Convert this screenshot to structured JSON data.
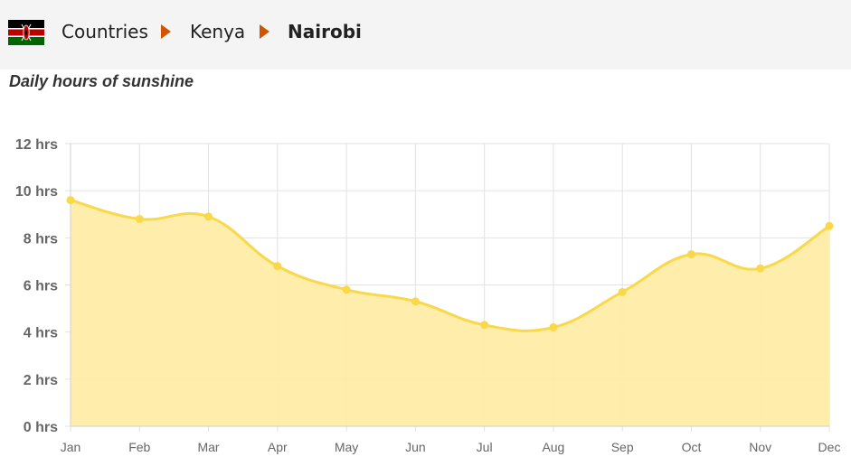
{
  "breadcrumb": {
    "items": [
      "Countries",
      "Kenya",
      "Nairobi"
    ]
  },
  "flag_icon": "kenya-flag-icon",
  "colors": {
    "accent": "#d35400",
    "line": "#f9d849",
    "fill": "#feeca6",
    "grid": "#e2e2e2",
    "header_bg": "#f4f4f4"
  },
  "chart_data": {
    "type": "area",
    "title": "Daily hours of sunshine",
    "categories": [
      "Jan",
      "Feb",
      "Mar",
      "Apr",
      "May",
      "Jun",
      "Jul",
      "Aug",
      "Sep",
      "Oct",
      "Nov",
      "Dec"
    ],
    "values": [
      9.6,
      8.8,
      8.9,
      6.8,
      5.8,
      5.3,
      4.3,
      4.2,
      5.7,
      7.3,
      6.7,
      8.5
    ],
    "y_ticks": [
      "0 hrs",
      "2 hrs",
      "4 hrs",
      "6 hrs",
      "8 hrs",
      "10 hrs",
      "12 hrs"
    ],
    "ylim": [
      0,
      12
    ],
    "grid": true,
    "legend": "none"
  }
}
